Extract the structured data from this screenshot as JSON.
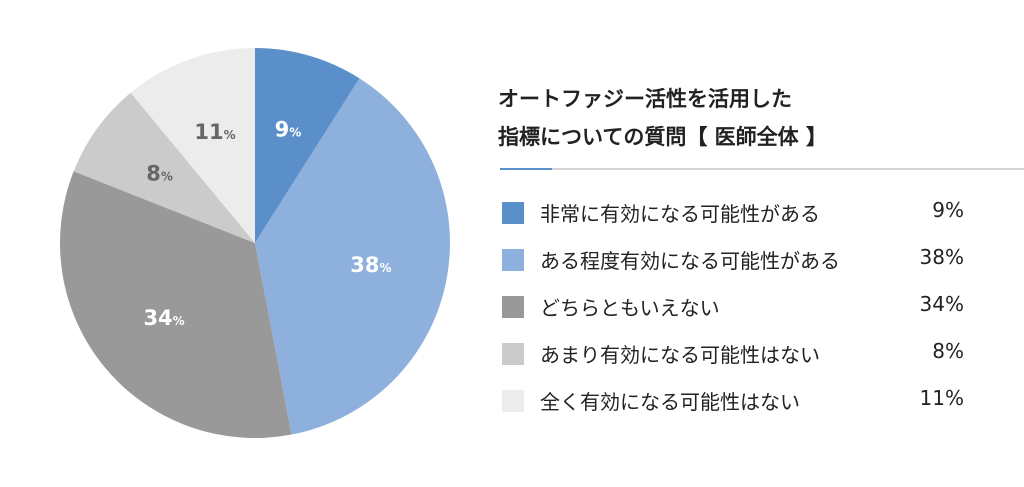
{
  "title_lines": [
    "オートファジー活性を活用した",
    "指標についての質問【 医師全体 】"
  ],
  "unit": "%",
  "chart_data": {
    "type": "pie",
    "title": "オートファジー活性を活用した指標についての質問【 医師全体 】",
    "categories": [
      "非常に有効になる可能性がある",
      "ある程度有効になる可能性がある",
      "どちらともいえない",
      "あまり有効になる可能性はない",
      "全く有効になる可能性はない"
    ],
    "values": [
      9,
      38,
      34,
      8,
      11
    ],
    "value_labels": [
      "9%",
      "38%",
      "34%",
      "8%",
      "11%"
    ],
    "colors": [
      "#5b8fc9",
      "#8eb0dd",
      "#999999",
      "#cbcbcb",
      "#ececec"
    ],
    "label_colors": [
      "#ffffff",
      "#ffffff",
      "#ffffff",
      "#666666",
      "#666666"
    ],
    "legend_position": "right",
    "start_angle": "12 o'clock",
    "direction": "clockwise"
  }
}
